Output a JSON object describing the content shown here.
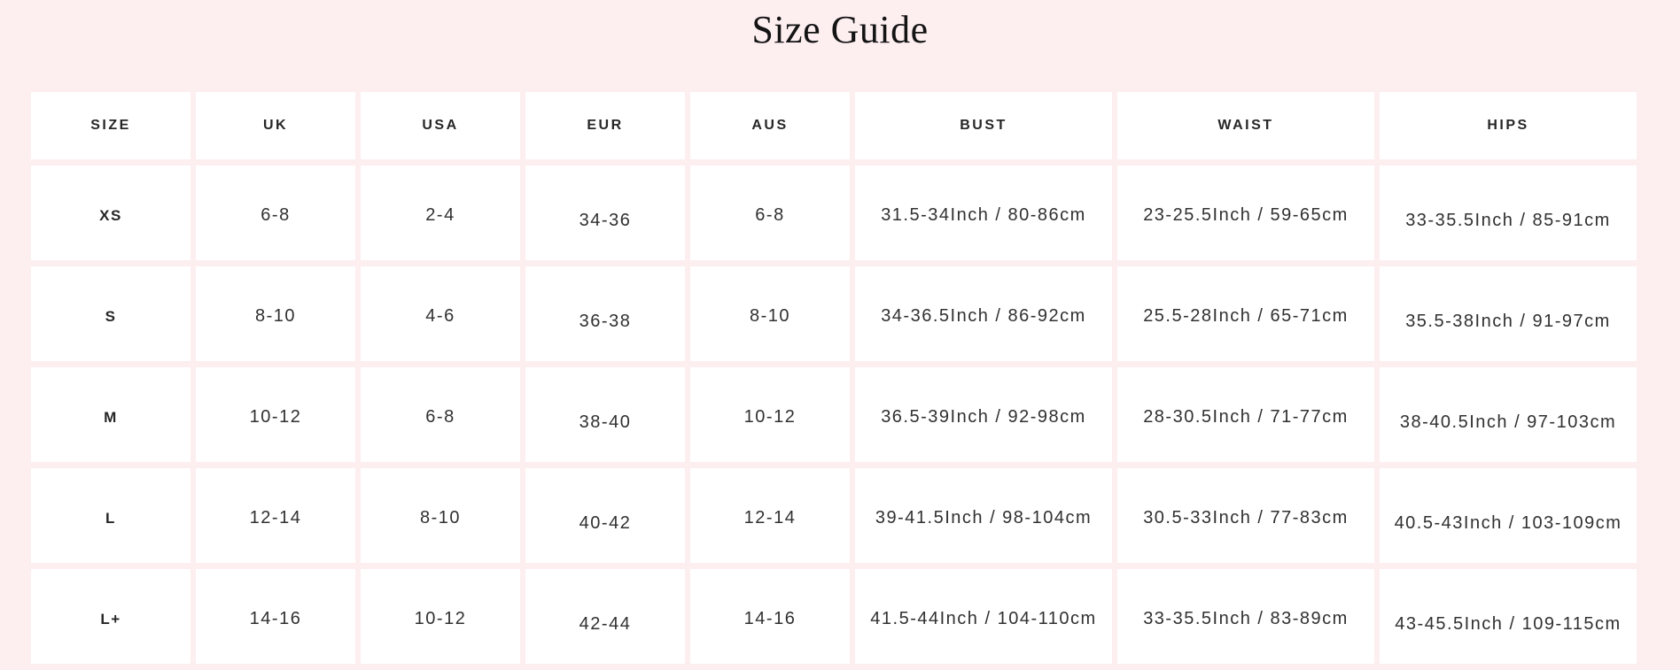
{
  "page": {
    "title": "Size Guide",
    "background_color": "#fdeef0",
    "cell_background_color": "#ffffff",
    "text_color": "#262626"
  },
  "size_table": {
    "columns": [
      "SIZE",
      "UK",
      "USA",
      "EUR",
      "AUS",
      "BUST",
      "WAIST",
      "HIPS"
    ],
    "rows": [
      [
        "XS",
        "6-8",
        "2-4",
        "34-36",
        "6-8",
        "31.5-34Inch / 80-86cm",
        "23-25.5Inch / 59-65cm",
        "33-35.5Inch / 85-91cm"
      ],
      [
        "S",
        "8-10",
        "4-6",
        "36-38",
        "8-10",
        "34-36.5Inch / 86-92cm",
        "25.5-28Inch / 65-71cm",
        "35.5-38Inch / 91-97cm"
      ],
      [
        "M",
        "10-12",
        "6-8",
        "38-40",
        "10-12",
        "36.5-39Inch / 92-98cm",
        "28-30.5Inch / 71-77cm",
        "38-40.5Inch / 97-103cm"
      ],
      [
        "L",
        "12-14",
        "8-10",
        "40-42",
        "12-14",
        "39-41.5Inch / 98-104cm",
        "30.5-33Inch / 77-83cm",
        "40.5-43Inch / 103-109cm"
      ],
      [
        "L+",
        "14-16",
        "10-12",
        "42-44",
        "14-16",
        "41.5-44Inch / 104-110cm",
        "33-35.5Inch / 83-89cm",
        "43-45.5Inch / 109-115cm"
      ]
    ]
  }
}
